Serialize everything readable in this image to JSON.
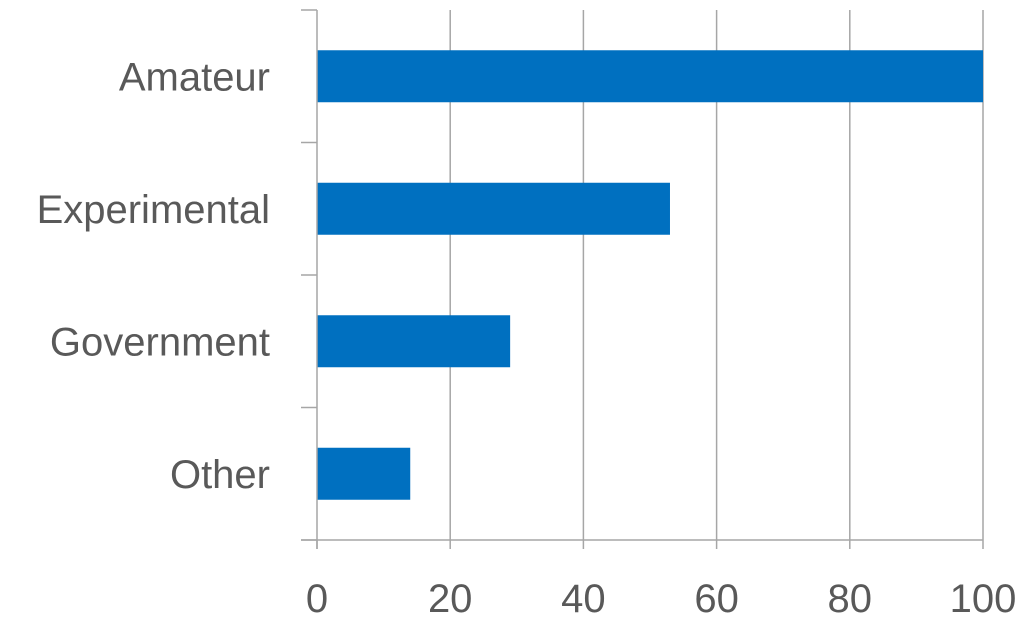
{
  "chart_data": {
    "type": "bar",
    "orientation": "horizontal",
    "categories": [
      "Amateur",
      "Experimental",
      "Government",
      "Other"
    ],
    "values": [
      100,
      53,
      29,
      14
    ],
    "xlim": [
      0,
      100
    ],
    "x_ticks": [
      "0",
      "20",
      "40",
      "60",
      "80",
      "100"
    ],
    "grid": "vertical",
    "bar_color": "#0070C0",
    "gridline_color": "#A6A6A6",
    "label_color": "#595959"
  }
}
